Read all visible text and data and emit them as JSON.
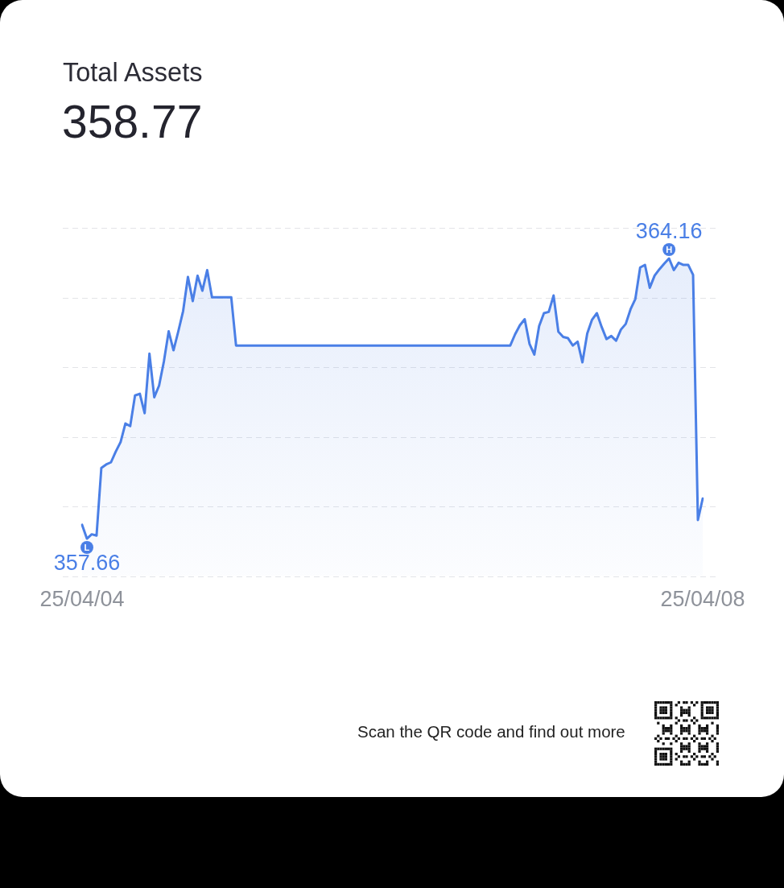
{
  "chart_data": {
    "type": "area",
    "title": "Total Assets",
    "subtitle": "358.77",
    "categories": [
      "25/04/04",
      null,
      null,
      null,
      null,
      null,
      null,
      null,
      null,
      null,
      null,
      null,
      null,
      null,
      null,
      null,
      null,
      null,
      null,
      null,
      null,
      null,
      null,
      null,
      null,
      null,
      null,
      null,
      null,
      null,
      null,
      null,
      null,
      null,
      null,
      null,
      null,
      null,
      null,
      null,
      null,
      null,
      null,
      null,
      null,
      null,
      null,
      null,
      null,
      null,
      null,
      null,
      null,
      null,
      null,
      null,
      null,
      null,
      null,
      null,
      null,
      null,
      null,
      null,
      null,
      null,
      null,
      null,
      null,
      null,
      null,
      null,
      null,
      null,
      null,
      null,
      null,
      null,
      null,
      null,
      null,
      null,
      null,
      null,
      null,
      null,
      null,
      null,
      null,
      null,
      null,
      null,
      null,
      null,
      null,
      null,
      null,
      null,
      null,
      null,
      null,
      null,
      null,
      null,
      null,
      null,
      null,
      null,
      null,
      null,
      null,
      null,
      null,
      null,
      null,
      null,
      null,
      null,
      null,
      null,
      null,
      null,
      null,
      null,
      null,
      null,
      null,
      null,
      null,
      "25/04/08"
    ],
    "values": [
      357.98,
      357.66,
      357.76,
      357.73,
      359.3,
      359.38,
      359.43,
      359.68,
      359.9,
      360.33,
      360.27,
      360.98,
      361.02,
      360.57,
      361.95,
      360.94,
      361.21,
      361.77,
      362.47,
      362.03,
      362.47,
      362.94,
      363.73,
      363.17,
      363.76,
      363.41,
      363.89,
      363.26,
      363.26,
      363.26,
      363.26,
      363.26,
      362.14,
      362.14,
      362.14,
      362.14,
      362.14,
      362.14,
      362.14,
      362.14,
      362.14,
      362.14,
      362.14,
      362.14,
      362.14,
      362.14,
      362.14,
      362.14,
      362.14,
      362.14,
      362.14,
      362.14,
      362.14,
      362.14,
      362.14,
      362.14,
      362.14,
      362.14,
      362.14,
      362.14,
      362.14,
      362.14,
      362.14,
      362.14,
      362.14,
      362.14,
      362.14,
      362.14,
      362.14,
      362.14,
      362.14,
      362.14,
      362.14,
      362.14,
      362.14,
      362.14,
      362.14,
      362.14,
      362.14,
      362.14,
      362.14,
      362.14,
      362.14,
      362.14,
      362.14,
      362.14,
      362.14,
      362.14,
      362.14,
      362.14,
      362.4,
      362.61,
      362.75,
      362.18,
      361.93,
      362.59,
      362.89,
      362.92,
      363.3,
      362.46,
      362.34,
      362.31,
      362.14,
      362.23,
      361.75,
      362.42,
      362.74,
      362.89,
      362.57,
      362.29,
      362.36,
      362.25,
      362.51,
      362.64,
      362.98,
      363.22,
      363.95,
      364.01,
      363.48,
      363.76,
      363.91,
      364.04,
      364.16,
      363.89,
      364.06,
      364.01,
      364.01,
      363.78,
      358.09,
      358.59
    ],
    "value_labels": [
      null,
      "357.66",
      null,
      null,
      null,
      null,
      null,
      null,
      null,
      null,
      null,
      null,
      null,
      null,
      null,
      null,
      null,
      null,
      null,
      null,
      null,
      null,
      null,
      null,
      null,
      null,
      null,
      null,
      null,
      null,
      null,
      null,
      null,
      null,
      null,
      null,
      null,
      null,
      null,
      null,
      null,
      null,
      null,
      null,
      null,
      null,
      null,
      null,
      null,
      null,
      null,
      null,
      null,
      null,
      null,
      null,
      null,
      null,
      null,
      null,
      null,
      null,
      null,
      null,
      null,
      null,
      null,
      null,
      null,
      null,
      null,
      null,
      null,
      null,
      null,
      null,
      null,
      null,
      null,
      null,
      null,
      null,
      null,
      null,
      null,
      null,
      null,
      null,
      null,
      null,
      null,
      null,
      null,
      null,
      null,
      null,
      null,
      null,
      null,
      null,
      null,
      null,
      null,
      null,
      null,
      null,
      null,
      null,
      null,
      null,
      null,
      null,
      null,
      null,
      null,
      null,
      null,
      null,
      null,
      null,
      null,
      null,
      "364.16",
      null,
      null,
      null,
      null,
      null,
      null,
      null
    ],
    "color": "#4a7fe6",
    "ylim": [
      356.79,
      364.87
    ],
    "yticks": [
      {
        "value": 356.79,
        "label": null
      },
      {
        "value": 358.41,
        "label": null
      },
      {
        "value": 360.02,
        "label": null
      },
      {
        "value": 361.64,
        "label": null
      },
      {
        "value": 363.25,
        "label": null
      },
      {
        "value": 364.87,
        "label": null
      }
    ],
    "grid": "y",
    "tick_labels": "x",
    "annotations": [
      {
        "text": "H",
        "y": 364.16
      },
      {
        "text": "L",
        "y": 357.66
      },
      "Scan the QR code and find out more"
    ]
  }
}
